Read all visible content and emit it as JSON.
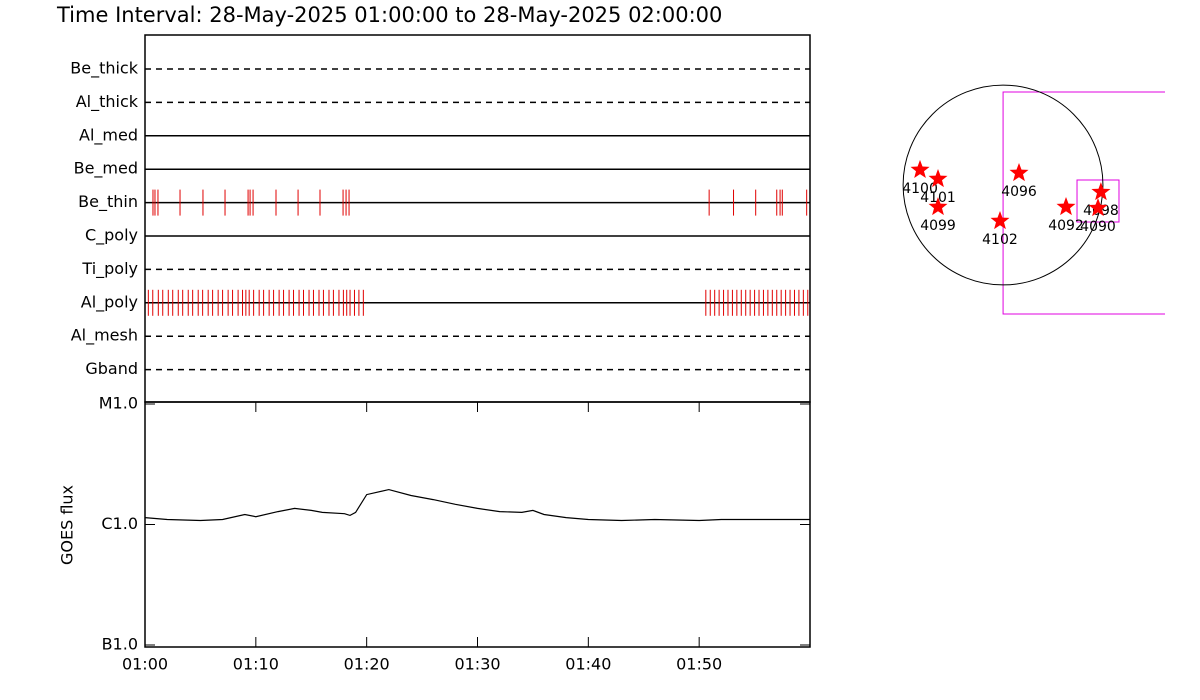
{
  "chart_data": [
    {
      "type": "timeline",
      "title": "Time Interval: 28-May-2025 01:00:00 to 28-May-2025 02:00:00",
      "xlim": [
        0,
        60
      ],
      "color": "#e00000",
      "rows": [
        {
          "name": "Be_thick",
          "dashed": true,
          "times": []
        },
        {
          "name": "Al_thick",
          "dashed": true,
          "times": []
        },
        {
          "name": "Al_med",
          "dashed": false,
          "times": []
        },
        {
          "name": "Be_med",
          "dashed": false,
          "times": []
        },
        {
          "name": "Be_thin",
          "dashed": false,
          "times": [
            0.72,
            0.9,
            1.17,
            3.16,
            5.23,
            7.22,
            9.3,
            9.48,
            9.75,
            11.82,
            13.81,
            15.79,
            17.87,
            18.14,
            18.41,
            50.9,
            53.1,
            55.1,
            57.0,
            57.3,
            57.5,
            59.7
          ]
        },
        {
          "name": "C_poly",
          "dashed": false,
          "times": []
        },
        {
          "name": "Ti_poly",
          "dashed": true,
          "times": []
        },
        {
          "name": "Al_poly",
          "dashed": false,
          "times": [
            0.3,
            0.7,
            1.2,
            1.6,
            2.1,
            2.5,
            3.0,
            3.4,
            3.9,
            4.3,
            4.8,
            5.2,
            5.7,
            6.1,
            6.6,
            7.0,
            7.5,
            7.9,
            8.4,
            8.8,
            9.1,
            9.4,
            9.8,
            10.3,
            10.7,
            11.2,
            11.6,
            12.1,
            12.5,
            13.0,
            13.4,
            13.9,
            14.3,
            14.8,
            15.2,
            15.7,
            16.1,
            16.6,
            17.0,
            17.5,
            17.9,
            18.2,
            18.5,
            18.9,
            19.3,
            19.7,
            50.6,
            51.0,
            51.4,
            51.8,
            52.2,
            52.6,
            53.0,
            53.4,
            53.8,
            54.2,
            54.6,
            55.0,
            55.4,
            55.8,
            56.2,
            56.6,
            57.0,
            57.4,
            57.8,
            58.2,
            58.6,
            59.0,
            59.4,
            59.8
          ]
        },
        {
          "name": "Al_mesh",
          "dashed": true,
          "times": []
        },
        {
          "name": "Gband",
          "dashed": true,
          "times": []
        }
      ]
    },
    {
      "type": "line",
      "ylabel": "GOES flux",
      "log": true,
      "color": "#000000",
      "x": [
        0,
        2,
        5,
        7,
        9,
        10,
        12,
        13.5,
        15,
        16,
        18,
        18.5,
        19,
        20,
        22,
        24,
        26,
        28,
        30,
        32,
        34,
        35,
        36,
        38,
        40,
        43,
        46,
        50,
        52,
        56,
        60
      ],
      "values": [
        1.14e-06,
        1.1e-06,
        1.08e-06,
        1.1e-06,
        1.21e-06,
        1.16e-06,
        1.28e-06,
        1.36e-06,
        1.31e-06,
        1.26e-06,
        1.23e-06,
        1.19e-06,
        1.26e-06,
        1.77e-06,
        1.95e-06,
        1.74e-06,
        1.61e-06,
        1.47e-06,
        1.36e-06,
        1.28e-06,
        1.26e-06,
        1.31e-06,
        1.21e-06,
        1.14e-06,
        1.1e-06,
        1.08e-06,
        1.1e-06,
        1.08e-06,
        1.1e-06,
        1.1e-06,
        1.1e-06
      ],
      "xlim": [
        0,
        60
      ],
      "xticks": [
        {
          "value": 0,
          "label": "01:00"
        },
        {
          "value": 10,
          "label": "01:10"
        },
        {
          "value": 20,
          "label": "01:20"
        },
        {
          "value": 30,
          "label": "01:30"
        },
        {
          "value": 40,
          "label": "01:40"
        },
        {
          "value": 50,
          "label": "01:50"
        }
      ],
      "ylim": [
        1e-07,
        1e-05
      ],
      "yticks": [
        {
          "value": 1e-05,
          "label": "M1.0"
        },
        {
          "value": 1e-06,
          "label": "C1.0"
        },
        {
          "value": 1e-07,
          "label": "B1.0"
        }
      ]
    },
    {
      "type": "scatter",
      "color": "#ff0000",
      "disk_radius": 950,
      "fov_color": "#e000e0",
      "xlim": [
        -1550,
        1540
      ],
      "ylim": [
        -1425,
        1425
      ],
      "labels": [
        "4100",
        "4101",
        "4099",
        "4096",
        "4102",
        "4092",
        "4098",
        "4090"
      ],
      "x": [
        -789,
        -618,
        -618,
        152,
        -29,
        599,
        931,
        903
      ],
      "y": [
        143,
        57,
        -209,
        114,
        -342,
        -209,
        -67,
        -219
      ],
      "fov": [
        {
          "x": 1055,
          "y": -171,
          "size": 2109
        },
        {
          "x": 903,
          "y": -152,
          "size": 399
        }
      ]
    }
  ]
}
